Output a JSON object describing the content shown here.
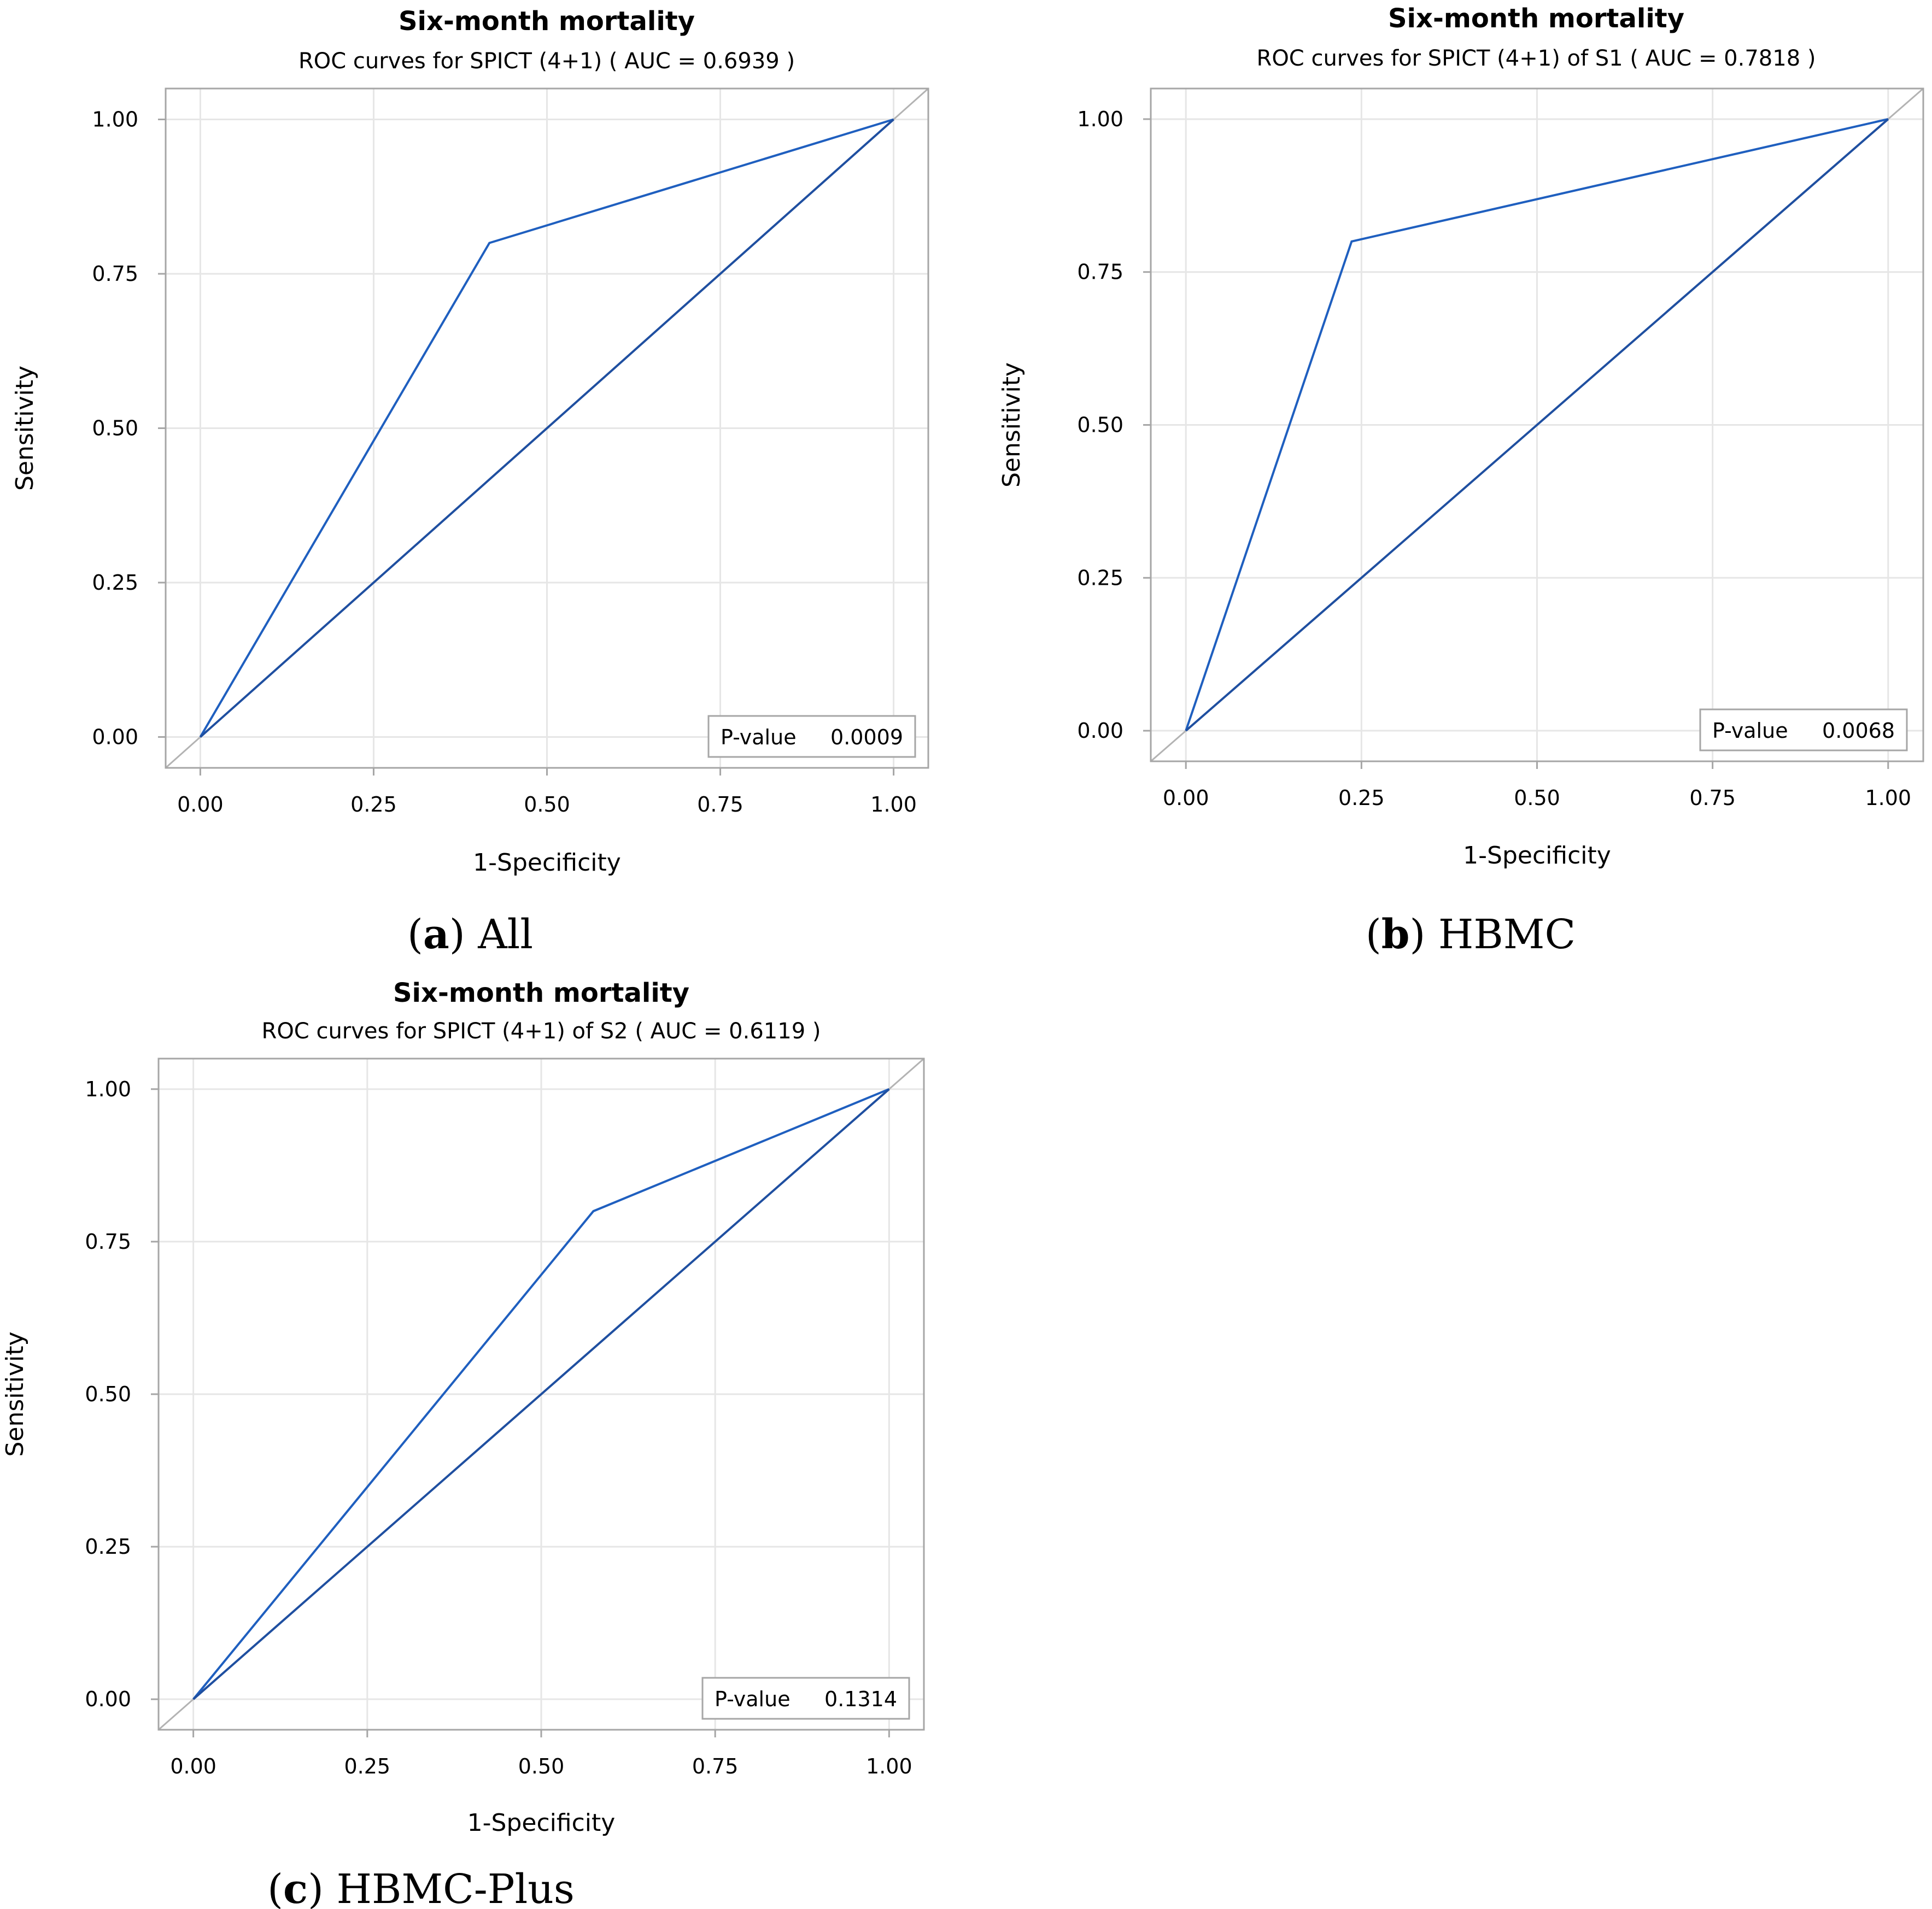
{
  "chart_data": [
    {
      "type": "line",
      "title": "Six-month mortality",
      "subtitle": "ROC curves for SPICT (4+1)  ( AUC = 0.6939 )",
      "xlabel": "1-Specificity",
      "ylabel": "Sensitivity",
      "xlim": [
        -0.05,
        1.05
      ],
      "ylim": [
        -0.05,
        1.05
      ],
      "xticks": [
        "0.00",
        "0.25",
        "0.50",
        "0.75",
        "1.00"
      ],
      "yticks": [
        "0.00",
        "0.25",
        "0.50",
        "0.75",
        "1.00"
      ],
      "grid": true,
      "series": [
        {
          "name": "ROC curve",
          "x": [
            0,
            0.417,
            1
          ],
          "y": [
            0,
            0.8,
            1
          ]
        },
        {
          "name": "Chance line",
          "x": [
            0,
            1
          ],
          "y": [
            0,
            1
          ]
        }
      ],
      "p_value": {
        "label": "P-value",
        "value": "0.0009"
      },
      "caption": {
        "letter": "a",
        "text": "All"
      }
    },
    {
      "type": "line",
      "title": "Six-month mortality",
      "subtitle": "ROC curves for SPICT (4+1) of S1 ( AUC = 0.7818 )",
      "xlabel": "1-Specificity",
      "ylabel": "Sensitivity",
      "xlim": [
        -0.05,
        1.05
      ],
      "ylim": [
        -0.05,
        1.05
      ],
      "xticks": [
        "0.00",
        "0.25",
        "0.50",
        "0.75",
        "1.00"
      ],
      "yticks": [
        "0.00",
        "0.25",
        "0.50",
        "0.75",
        "1.00"
      ],
      "grid": true,
      "series": [
        {
          "name": "ROC curve",
          "x": [
            0,
            0.236,
            1
          ],
          "y": [
            0,
            0.8,
            1
          ]
        },
        {
          "name": "Chance line",
          "x": [
            0,
            1
          ],
          "y": [
            0,
            1
          ]
        }
      ],
      "p_value": {
        "label": "P-value",
        "value": "0.0068"
      },
      "caption": {
        "letter": "b",
        "text": "HBMC"
      }
    },
    {
      "type": "line",
      "title": "Six-month mortality",
      "subtitle": "ROC curves for SPICT (4+1) of S2 ( AUC = 0.6119 )",
      "xlabel": "1-Specificity",
      "ylabel": "Sensitivity",
      "xlim": [
        -0.05,
        1.05
      ],
      "ylim": [
        -0.05,
        1.05
      ],
      "xticks": [
        "0.00",
        "0.25",
        "0.50",
        "0.75",
        "1.00"
      ],
      "yticks": [
        "0.00",
        "0.25",
        "0.50",
        "0.75",
        "1.00"
      ],
      "grid": true,
      "series": [
        {
          "name": "ROC curve",
          "x": [
            0,
            0.575,
            1
          ],
          "y": [
            0,
            0.8,
            1
          ]
        },
        {
          "name": "Chance line",
          "x": [
            0,
            1
          ],
          "y": [
            0,
            1
          ]
        }
      ],
      "p_value": {
        "label": "P-value",
        "value": "0.1314"
      },
      "caption": {
        "letter": "c",
        "text": "HBMC-Plus"
      }
    }
  ],
  "colors": {
    "roc_line": "#1f5fbf",
    "chance_line": "#1f4fa0",
    "reference_diagonal": "#b3b3b3",
    "grid": "#e6e6e6",
    "frame": "#a6a6a6"
  }
}
